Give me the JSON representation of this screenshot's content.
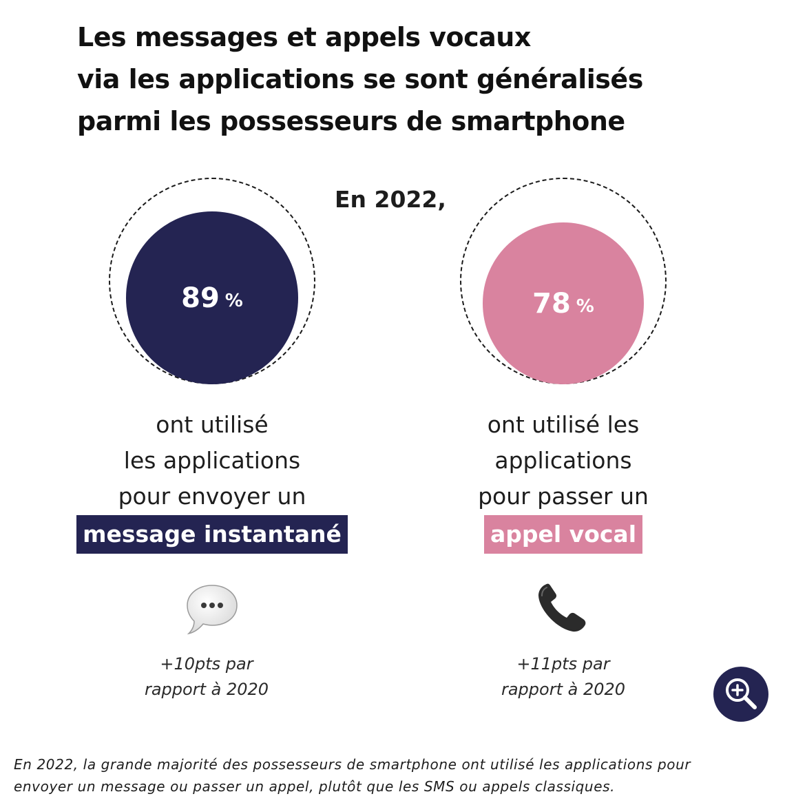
{
  "title_lines": [
    "Les messages et appels vocaux",
    "via les applications se sont généralisés",
    "parmi les possesseurs de smartphone"
  ],
  "year_label": "En 2022,",
  "colors": {
    "navy": "#242452",
    "pink": "#d9839f"
  },
  "chart_data": {
    "type": "bubble",
    "unit": "%",
    "items": [
      {
        "value": 89,
        "value_label": "89",
        "unit_label": "%",
        "color": "#242452",
        "desc_lines": [
          "ont utilisé",
          "les applications",
          "pour envoyer un"
        ],
        "highlight": "message instantané",
        "icon": "speech-bubble-icon",
        "change_lines": [
          "+10pts par",
          "rapport à 2020"
        ]
      },
      {
        "value": 78,
        "value_label": "78",
        "unit_label": "%",
        "color": "#d9839f",
        "desc_lines": [
          "ont utilisé les",
          "applications",
          "pour passer un"
        ],
        "highlight": "appel vocal",
        "icon": "telephone-icon",
        "change_lines": [
          "+11pts par",
          "rapport à 2020"
        ]
      }
    ]
  },
  "caption_lines": [
    "En 2022, la grande majorité des possesseurs de smartphone ont utilisé les applications pour",
    "envoyer un message ou passer un appel, plutôt que les SMS ou appels classiques."
  ]
}
